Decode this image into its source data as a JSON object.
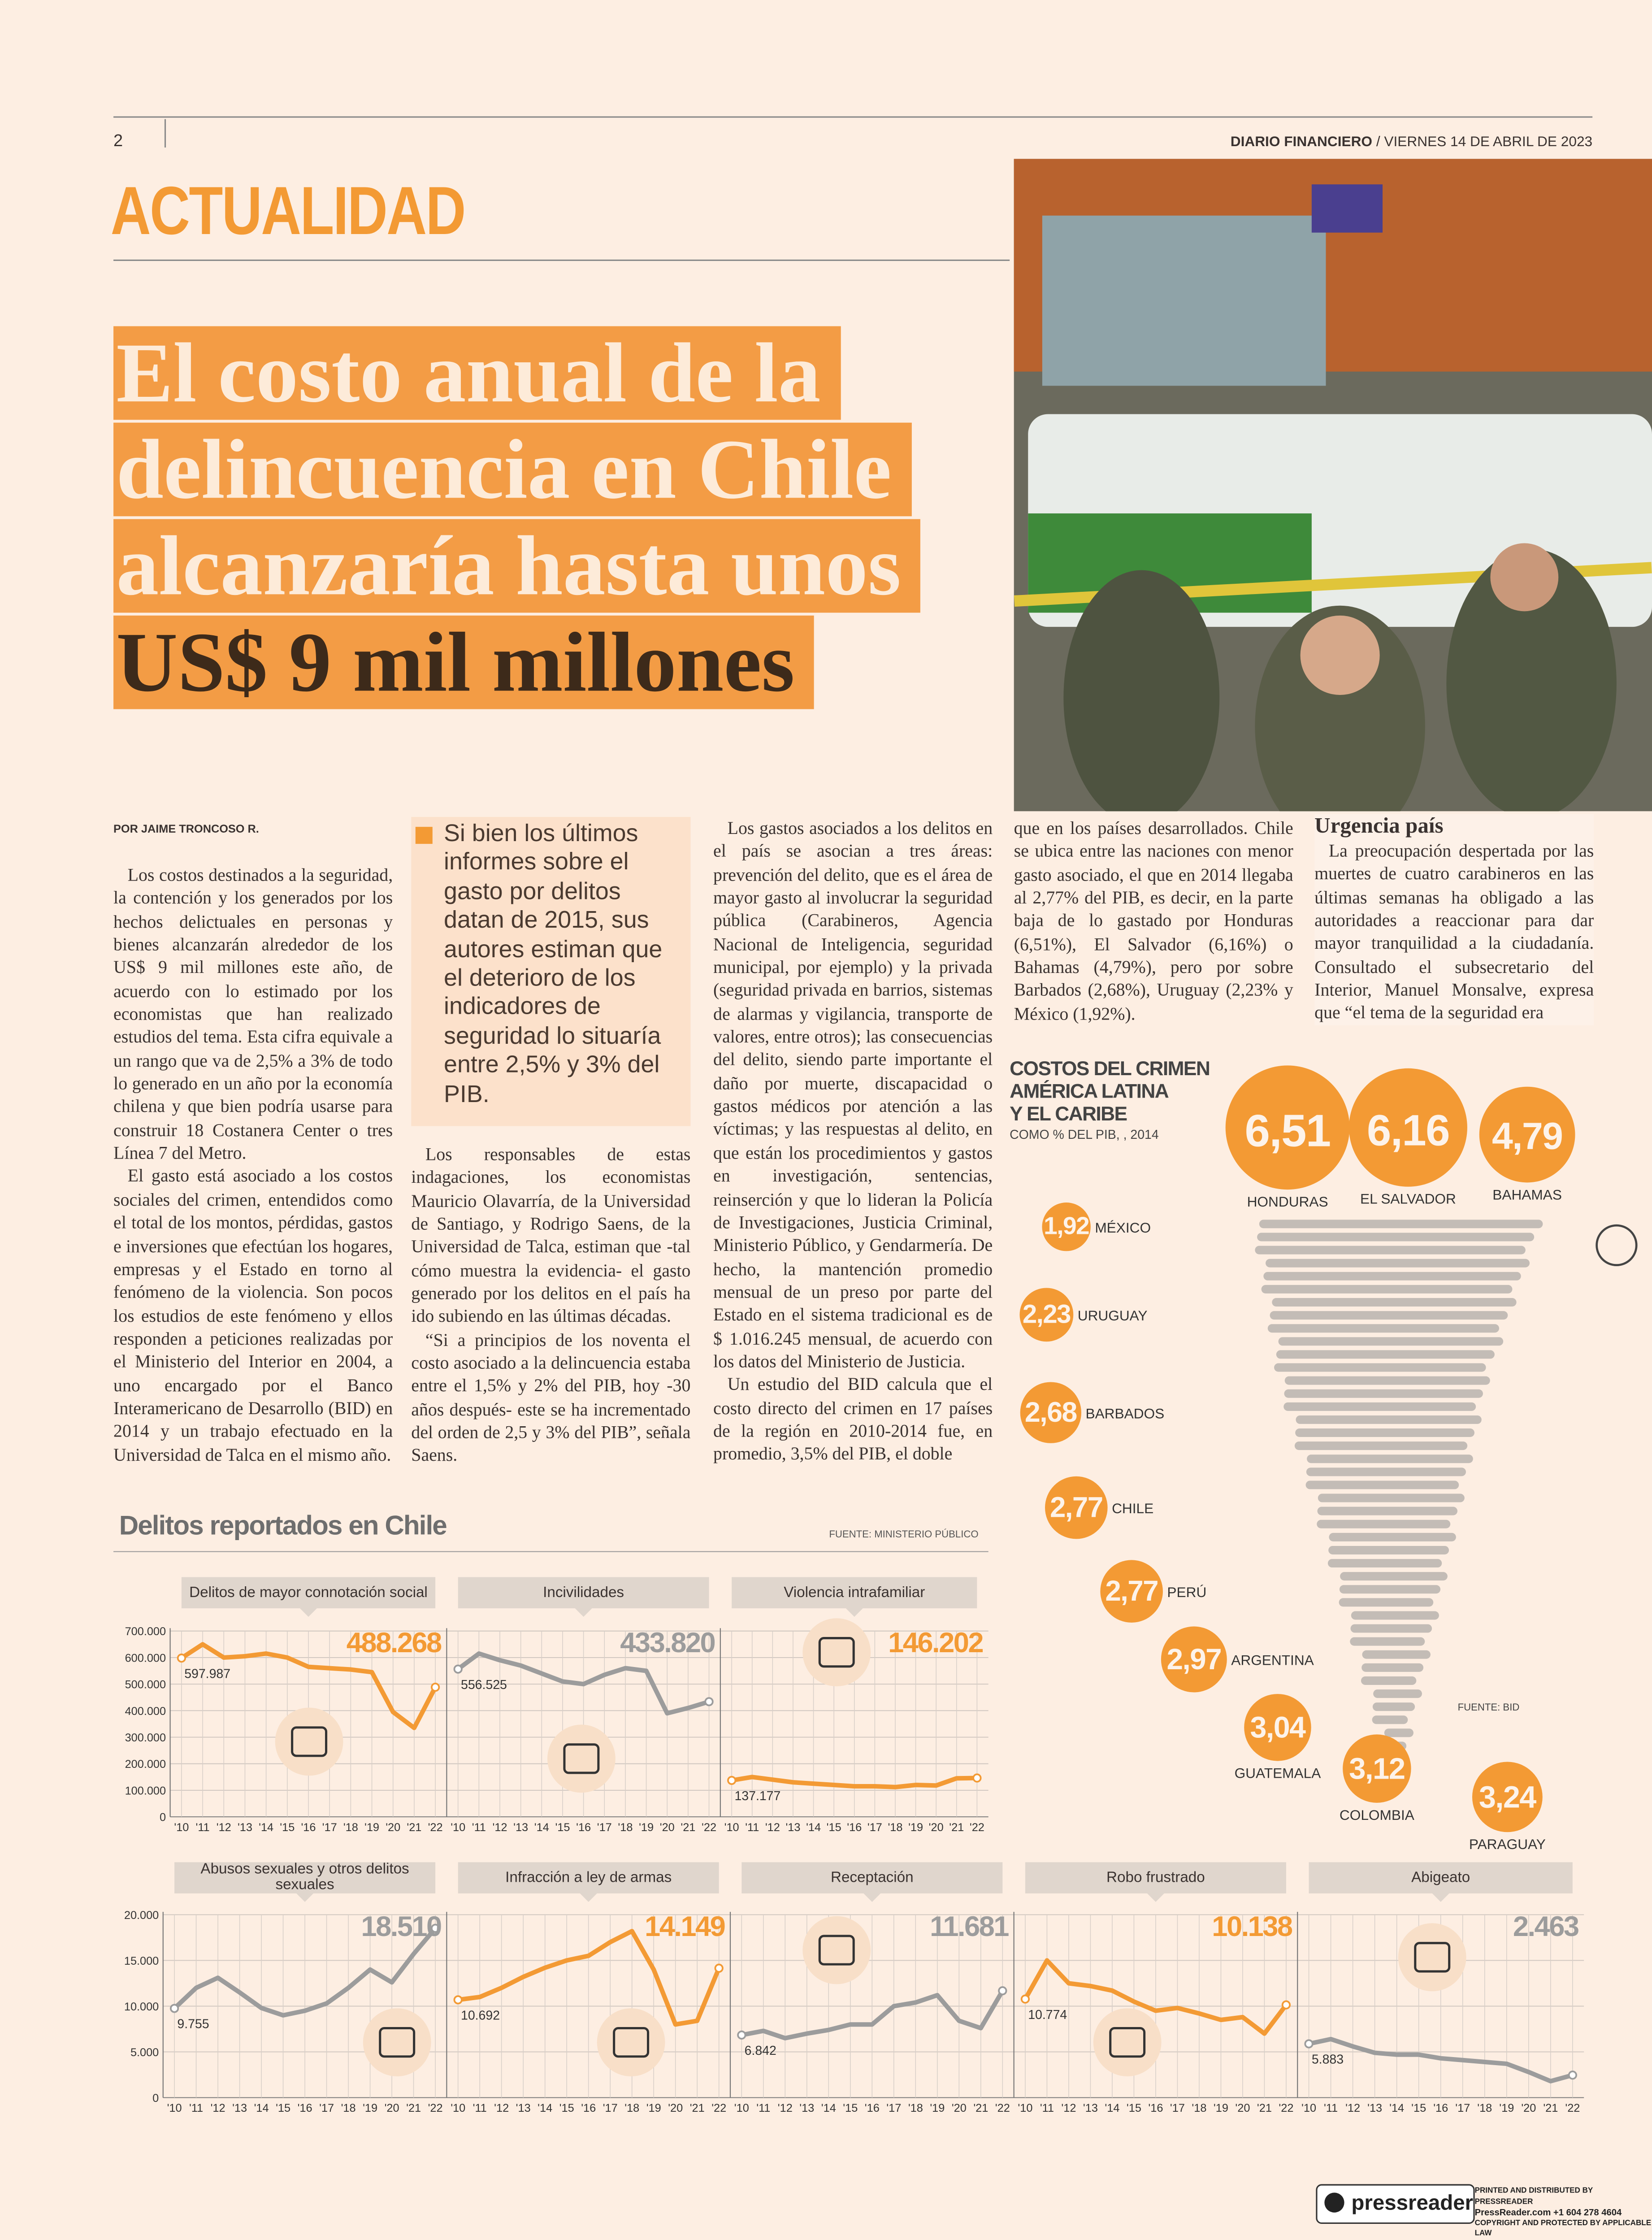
{
  "header": {
    "page": "2",
    "publication": "DIARIO FINANCIERO",
    "date": "/ VIERNES 14 DE ABRIL DE 2023",
    "section": "ACTUALIDAD"
  },
  "headline": {
    "lines": [
      "El costo anual de la",
      "delincuencia en Chile",
      "alcanzaría hasta unos",
      "US$ 9 mil millones"
    ]
  },
  "article": {
    "byline": "POR JAIME TRONCOSO R.",
    "pullquote": "Si bien los últimos informes sobre el gasto por delitos datan de 2015, sus autores estiman que el deterioro de los indicadores de seguridad lo situaría entre 2,5% y 3% del PIB.",
    "subhead": "Urgencia país",
    "paragraphs": [
      "Los costos destinados a la seguridad, la contención y los generados por los hechos delictuales en personas y bienes alcanzarán alrededor de los US$ 9 mil millones este año, de acuerdo con lo estimado por los economistas que han realizado estudios del tema. Esta cifra equivale a un rango que va de 2,5% a 3% de todo lo generado en un año por la economía chilena y que bien podría usarse para construir 18 Costanera Center o tres Línea 7 del Metro.",
      "El gasto está asociado a los costos sociales del crimen, entendidos como el total de los montos, pérdidas, gastos e inversiones que efectúan los hogares, empresas y el Estado en torno al fenómeno de la violencia. Son pocos los estudios de este fenómeno y ellos responden a peticiones realizadas por el Ministerio del Interior en 2004, a uno encargado por el Banco Interamericano de Desarrollo (BID) en 2014 y un trabajo efectuado en la Universidad de Talca en el mismo año.",
      "Los responsables de estas indagaciones, los economistas Mauricio Olavarría, de la Universidad de Santiago, y Rodrigo Saens, de la Universidad de Talca, estiman que -tal cómo muestra la evidencia- el gasto generado por los delitos en el país ha ido subiendo en las últimas décadas.",
      "“Si a principios de los noventa el costo asociado a la delincuencia estaba entre el 1,5% y 2% del PIB, hoy -30 años después- este se ha incrementado del orden de 2,5 y 3% del PIB”, señala Saens.",
      "Los gastos asociados a los delitos en el país se asocian a tres áreas: prevención del delito, que es el área de mayor gasto al involucrar la seguridad pública (Carabineros, Agencia Nacional de Inteligencia, seguridad municipal, por ejemplo) y la privada (seguridad privada en barrios, sistemas de alarmas y vigilancia, transporte de valores, entre otros); las consecuencias del delito, siendo parte importante el daño por muerte, discapacidad o gastos médicos por atención a las víctimas; y las respuestas al delito, en que están los procedimientos y gastos en investigación, sentencias, reinserción y que lo lideran la Policía de Investigaciones, Justicia Criminal, Ministerio Público, y Gendarmería. De hecho, la mantención promedio mensual de un preso por parte del Estado en el sistema tradicional es de $ 1.016.245 mensual, de acuerdo con los datos del Ministerio de Justicia.",
      "Un estudio del BID calcula que el costo directo del crimen en 17 países de la región en 2010-2014 fue, en promedio, 3,5% del PIB, el doble",
      "que en los países desarrollados. Chile se ubica entre las naciones con menor gasto asociado, el que en 2014 llegaba al 2,77% del PIB, es decir, en la parte baja de lo gastado por Honduras (6,51%), El Salvador (6,16%) o Bahamas (4,79%), pero por sobre Barbados (2,68%), Uruguay (2,23% y México (1,92%).",
      "La preocupación despertada por las muertes de cuatro carabineros en las últimas semanas ha obligado a las autoridades a reaccionar para dar mayor tranquilidad a la ciudadanía. Consultado el subsecretario del Interior, Manuel Monsalve, expresa que “el tema de la seguridad era"
    ]
  },
  "footer": {
    "brand": "pressreader",
    "lines": [
      "PRINTED AND DISTRIBUTED BY PRESSREADER",
      "PressReader.com +1 604 278 4604",
      "COPYRIGHT AND PROTECTED BY APPLICABLE LAW"
    ]
  },
  "chart_data": [
    {
      "type": "line",
      "title": "Delitos reportados en Chile",
      "source": "FUENTE: MINISTERIO PÚBLICO",
      "categories": [
        "'10",
        "'11",
        "'12",
        "'13",
        "'14",
        "'15",
        "'16",
        "'17",
        "'18",
        "'19",
        "'20",
        "'21",
        "'22"
      ],
      "ylim": [
        0,
        700000
      ],
      "yticks": [
        0,
        {
          "value": 100000,
          "label": "100.000"
        },
        {
          "value": 200000,
          "label": "200.000"
        },
        {
          "value": 300000,
          "label": "300.000"
        },
        {
          "value": 400000,
          "label": "400.000"
        },
        {
          "value": 500000,
          "label": "500.000"
        },
        {
          "value": 600000,
          "label": "600.000"
        },
        {
          "value": 700000,
          "label": "700.000"
        }
      ],
      "series": [
        {
          "name": "Delitos de mayor connotación social",
          "color": "#f39a34",
          "values": [
            597987,
            650000,
            600000,
            605000,
            615000,
            600000,
            565000,
            560000,
            555000,
            545000,
            395000,
            335000,
            488268
          ],
          "value_labels": [
            "597.987",
            null,
            null,
            null,
            null,
            null,
            null,
            null,
            null,
            null,
            null,
            null,
            "488.268"
          ]
        },
        {
          "name": "Incivilidades",
          "color": "#9c9c9c",
          "values": [
            556525,
            615000,
            590000,
            570000,
            540000,
            510000,
            500000,
            535000,
            560000,
            550000,
            390000,
            410000,
            433820
          ],
          "value_labels": [
            "556.525",
            null,
            null,
            null,
            null,
            null,
            null,
            null,
            null,
            null,
            null,
            null,
            "433.820"
          ]
        },
        {
          "name": "Violencia intrafamiliar",
          "color": "#f39a34",
          "values": [
            137177,
            150000,
            140000,
            130000,
            125000,
            120000,
            115000,
            115000,
            112000,
            120000,
            118000,
            145000,
            146202
          ],
          "value_labels": [
            "137.177",
            null,
            null,
            null,
            null,
            null,
            null,
            null,
            null,
            null,
            null,
            null,
            "146.202"
          ]
        }
      ]
    },
    {
      "type": "line",
      "categories": [
        "'10",
        "'11",
        "'12",
        "'13",
        "'14",
        "'15",
        "'16",
        "'17",
        "'18",
        "'19",
        "'20",
        "'21",
        "'22"
      ],
      "ylim": [
        0,
        20000
      ],
      "yticks": [
        0,
        {
          "value": 5000,
          "label": "5.000"
        },
        {
          "value": 10000,
          "label": "10.000"
        },
        {
          "value": 15000,
          "label": "15.000"
        },
        {
          "value": 20000,
          "label": "20.000"
        }
      ],
      "series": [
        {
          "name": "Abusos sexuales y otros delitos sexuales",
          "color": "#9c9c9c",
          "values": [
            9755,
            12000,
            13100,
            11500,
            9800,
            9000,
            9500,
            10300,
            12000,
            14000,
            12600,
            15700,
            18510
          ],
          "value_labels": [
            "9.755",
            null,
            null,
            null,
            null,
            null,
            null,
            null,
            null,
            null,
            null,
            null,
            "18.510"
          ]
        },
        {
          "name": "Infracción a ley de armas",
          "color": "#f39a34",
          "values": [
            10692,
            11000,
            12000,
            13200,
            14200,
            15000,
            15500,
            17000,
            18200,
            14000,
            8000,
            8400,
            14149
          ],
          "value_labels": [
            "10.692",
            null,
            null,
            null,
            null,
            null,
            null,
            null,
            null,
            null,
            null,
            null,
            "14.149"
          ]
        },
        {
          "name": "Receptación",
          "color": "#9c9c9c",
          "values": [
            6842,
            7300,
            6500,
            7000,
            7400,
            8000,
            8000,
            10000,
            10400,
            11200,
            8400,
            7600,
            11681
          ],
          "value_labels": [
            "6.842",
            null,
            null,
            null,
            null,
            null,
            null,
            null,
            null,
            null,
            null,
            null,
            "11.681"
          ]
        },
        {
          "name": "Robo frustrado",
          "color": "#f39a34",
          "values": [
            10774,
            15000,
            12500,
            12200,
            11700,
            10500,
            9500,
            9800,
            9200,
            8500,
            8800,
            7000,
            10138
          ],
          "value_labels": [
            "10.774",
            null,
            null,
            null,
            null,
            null,
            null,
            null,
            null,
            null,
            null,
            null,
            "10.138"
          ]
        },
        {
          "name": "Abigeato",
          "color": "#9c9c9c",
          "values": [
            5883,
            6400,
            5600,
            4900,
            4700,
            4700,
            4300,
            4100,
            3900,
            3700,
            2800,
            1800,
            2463
          ],
          "value_labels": [
            "5.883",
            null,
            null,
            null,
            null,
            null,
            null,
            null,
            null,
            null,
            null,
            null,
            "2.463"
          ]
        }
      ]
    },
    {
      "type": "bubble",
      "title_lines": [
        "COSTOS DEL CRIMEN",
        "AMÉRICA LATINA",
        "Y EL CARIBE"
      ],
      "subtitle": "COMO % DEL PIB, , 2014",
      "source": "FUENTE: BID",
      "color": "#f39a34",
      "categories": [
        "HONDURAS",
        "EL SALVADOR",
        "BAHAMAS",
        "MÉXICO",
        "URUGUAY",
        "BARBADOS",
        "CHILE",
        "PERÚ",
        "ARGENTINA",
        "GUATEMALA",
        "COLOMBIA",
        "PARAGUAY"
      ],
      "values": [
        6.51,
        6.16,
        4.79,
        1.92,
        2.23,
        2.68,
        2.77,
        2.77,
        2.97,
        3.04,
        3.12,
        3.24
      ],
      "value_labels": [
        "6,51",
        "6,16",
        "4,79",
        "1,92",
        "2,23",
        "2,68",
        "2,77",
        "2,77",
        "2,97",
        "3,04",
        "3,12",
        "3,24"
      ]
    }
  ]
}
